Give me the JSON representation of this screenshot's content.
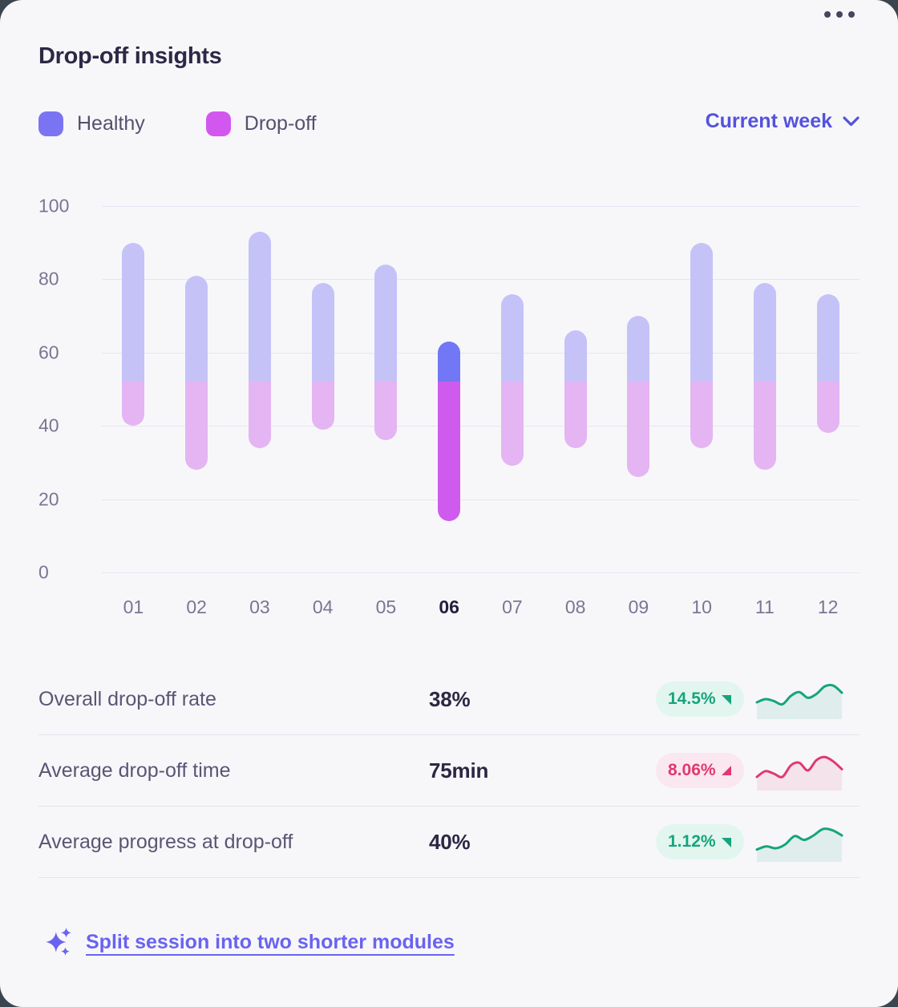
{
  "header": {
    "title": "Drop-off insights"
  },
  "legend": {
    "items": [
      {
        "label": "Healthy",
        "color": "#7b74f2"
      },
      {
        "label": "Drop-off",
        "color": "#d257ef"
      }
    ]
  },
  "period_selector": {
    "label": "Current week"
  },
  "chart_data": {
    "type": "bar",
    "variant": "floating_range_split",
    "title": "Drop-off insights",
    "xlabel": "",
    "ylabel": "",
    "ylim": [
      0,
      100
    ],
    "yticks": [
      0,
      20,
      40,
      60,
      80,
      100
    ],
    "grid": true,
    "legend_position": "top-left",
    "split_level": 52,
    "highlighted_category": "06",
    "categories": [
      "01",
      "02",
      "03",
      "04",
      "05",
      "06",
      "07",
      "08",
      "09",
      "10",
      "11",
      "12"
    ],
    "bars": [
      {
        "label": "01",
        "low": 40,
        "high": 90
      },
      {
        "label": "02",
        "low": 28,
        "high": 81
      },
      {
        "label": "03",
        "low": 34,
        "high": 93
      },
      {
        "label": "04",
        "low": 39,
        "high": 79
      },
      {
        "label": "05",
        "low": 36,
        "high": 84
      },
      {
        "label": "06",
        "low": 14,
        "high": 63
      },
      {
        "label": "07",
        "low": 29,
        "high": 76
      },
      {
        "label": "08",
        "low": 34,
        "high": 66
      },
      {
        "label": "09",
        "low": 26,
        "high": 70
      },
      {
        "label": "10",
        "low": 34,
        "high": 90
      },
      {
        "label": "11",
        "low": 28,
        "high": 79
      },
      {
        "label": "12",
        "low": 38,
        "high": 76
      }
    ],
    "series_note": "each bar spans low..high; segment above split_level = Healthy, below = Drop-off",
    "colors": {
      "healthy": "#c5c2f8",
      "dropoff": "#e4b5f2",
      "healthy_selected": "#7277f5",
      "dropoff_selected": "#ce5bee",
      "gridline": "#e7e5f1",
      "axis_label": "#7b7592",
      "axis_label_selected": "#241e3c"
    }
  },
  "stats": {
    "palette": {
      "green": {
        "bg": "#e2f6ef",
        "fg": "#17a47c"
      },
      "red": {
        "bg": "#fbe7ef",
        "fg": "#e0396f"
      }
    },
    "rows": [
      {
        "label": "Overall drop-off rate",
        "value": "38%",
        "change": "14.5%",
        "direction": "down",
        "trend_color": "green",
        "spark": [
          0.6,
          0.5,
          0.56,
          0.66,
          0.4,
          0.28,
          0.46,
          0.34,
          0.1,
          0.08,
          0.3
        ]
      },
      {
        "label": "Average drop-off time",
        "value": "75min",
        "change": "8.06%",
        "direction": "up",
        "trend_color": "red",
        "spark": [
          0.7,
          0.52,
          0.6,
          0.7,
          0.34,
          0.26,
          0.5,
          0.18,
          0.08,
          0.22,
          0.46
        ]
      },
      {
        "label": "Average progress at drop-off",
        "value": "40%",
        "change": "1.12%",
        "direction": "down",
        "trend_color": "green",
        "spark": [
          0.74,
          0.64,
          0.7,
          0.58,
          0.32,
          0.44,
          0.3,
          0.1,
          0.14,
          0.3
        ]
      }
    ]
  },
  "suggestion": {
    "label": "Split session into two shorter modules"
  }
}
